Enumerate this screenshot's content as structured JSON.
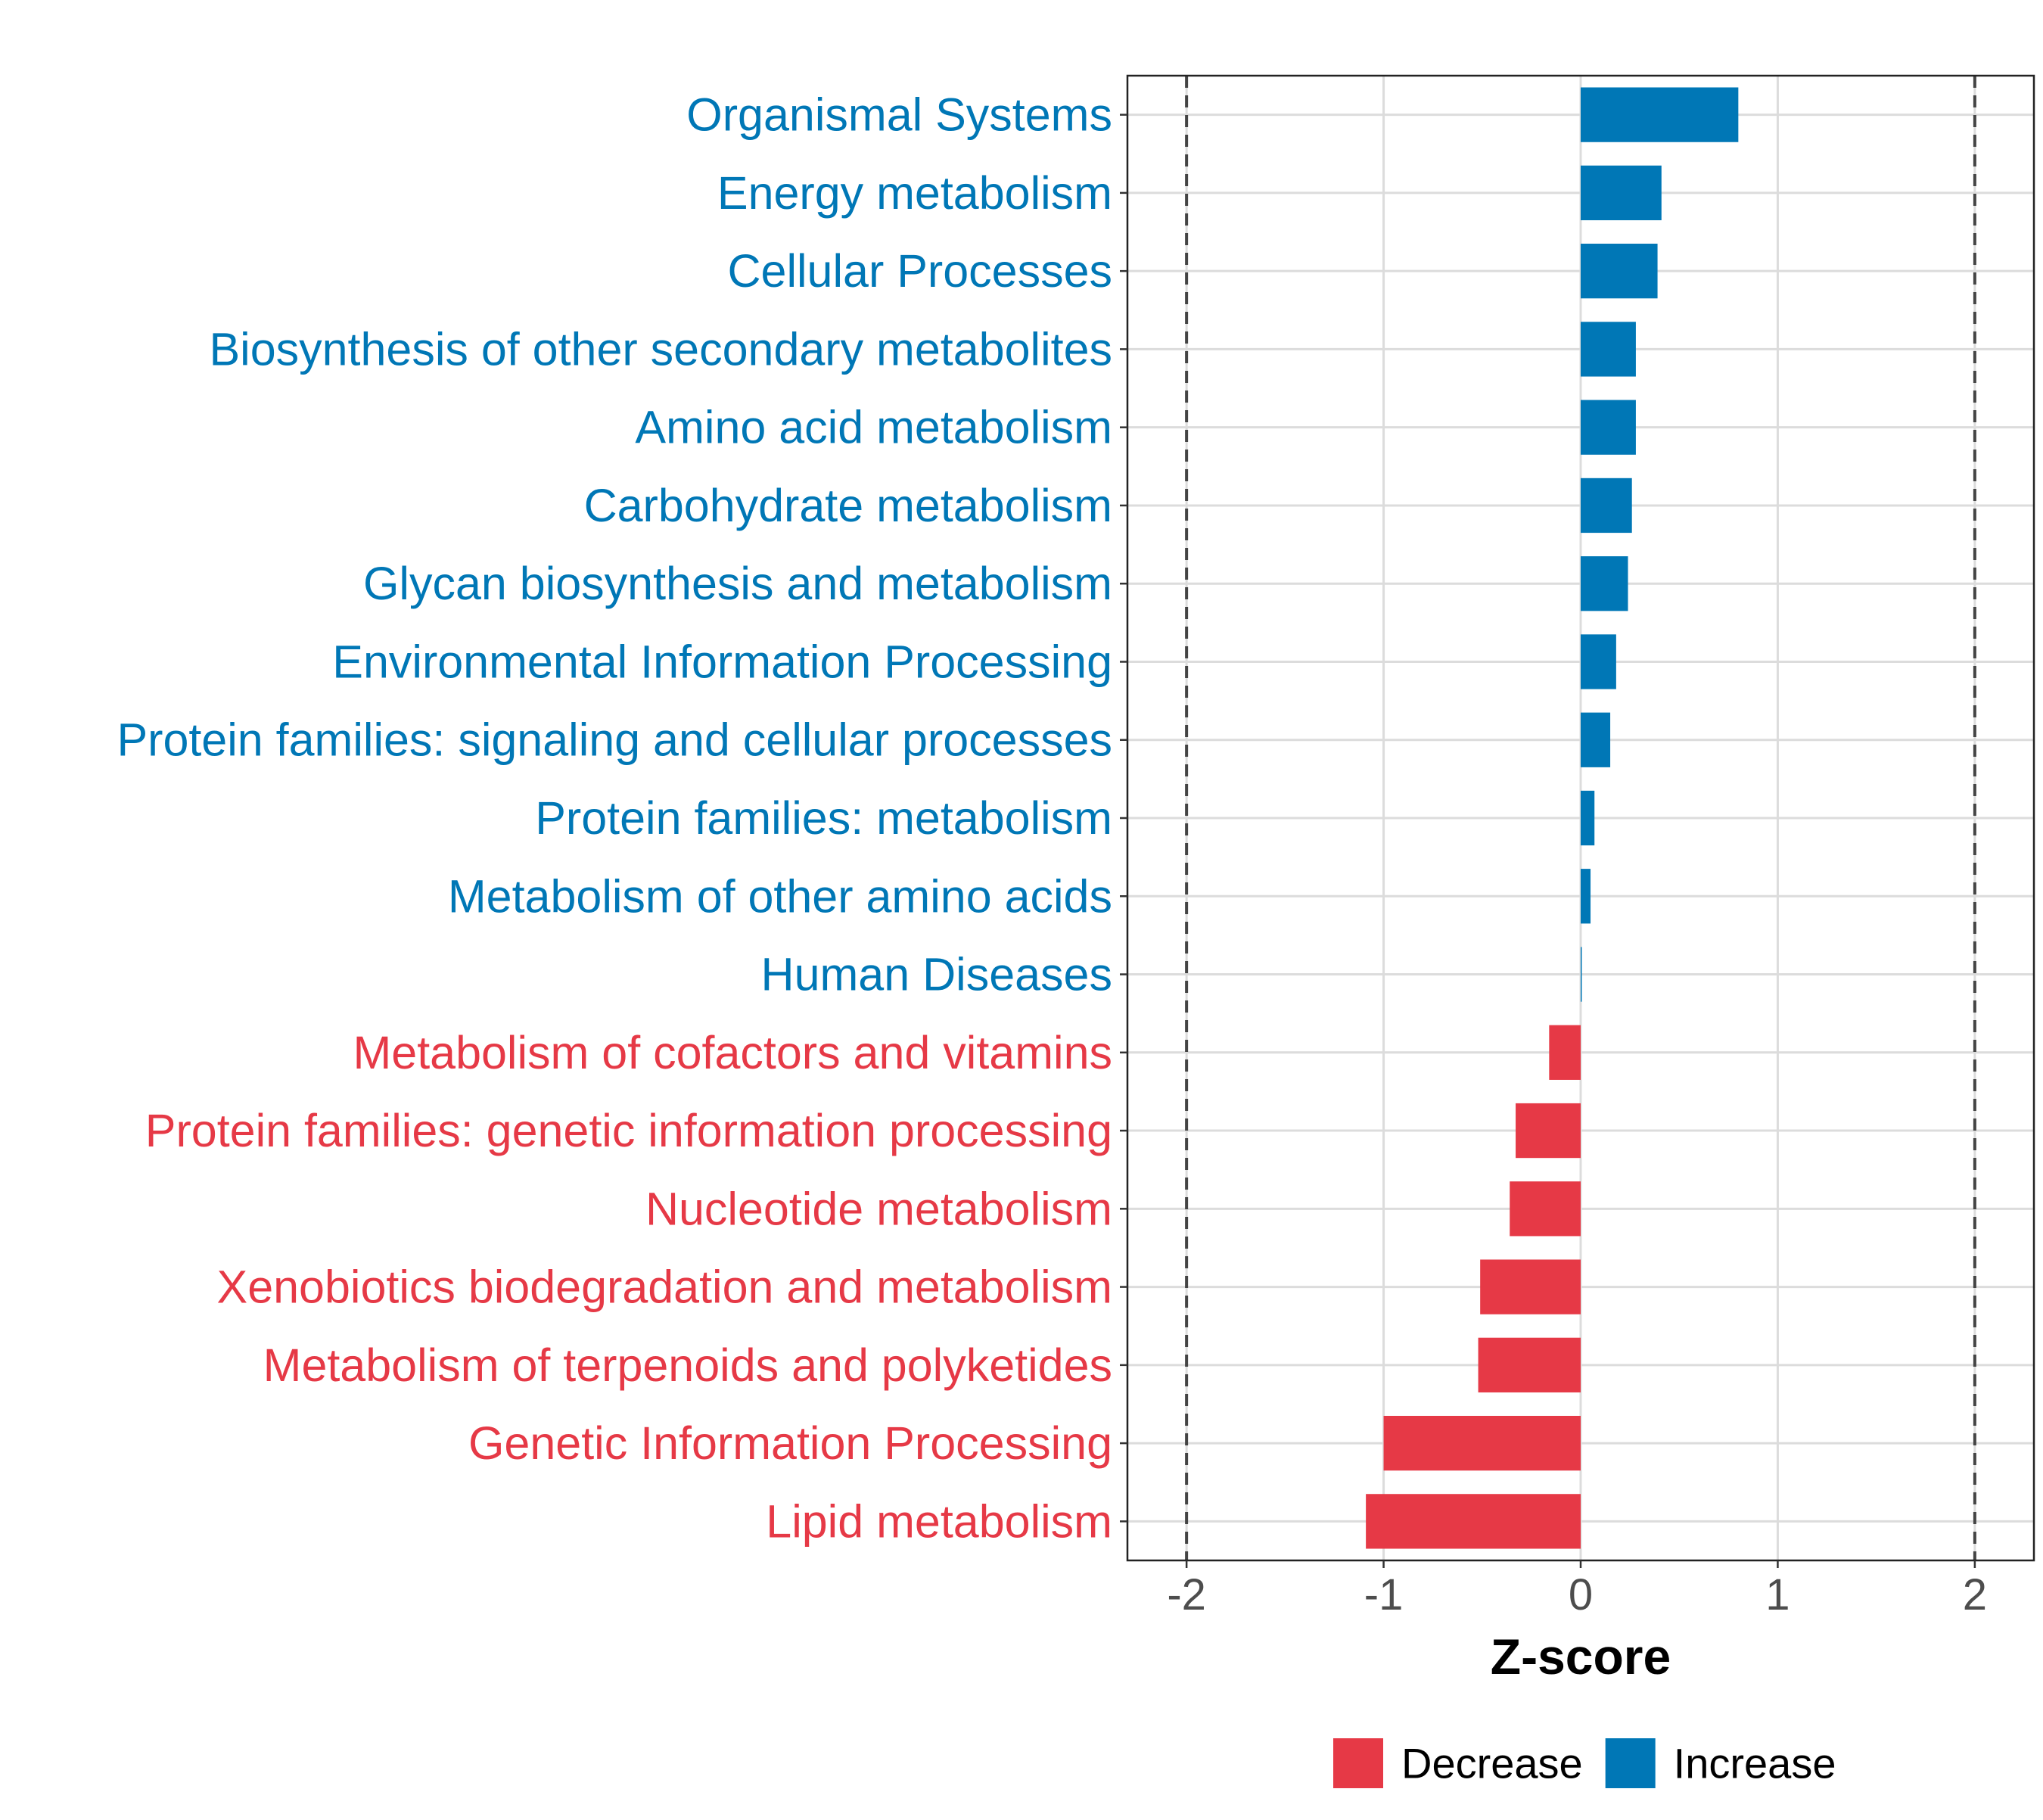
{
  "chart_data": {
    "type": "bar",
    "orientation": "horizontal",
    "title": "",
    "xlabel": "Z-score",
    "ylabel": "",
    "xlim": [
      -2.3,
      2.3
    ],
    "x_ticks": [
      -2,
      -1,
      0,
      1,
      2
    ],
    "x_tick_labels": [
      "-2",
      "-1",
      "0",
      "1",
      "2"
    ],
    "reference_lines": [
      -2,
      2
    ],
    "grid": true,
    "legend_position": "bottom",
    "categories": [
      "Organismal Systems",
      "Energy metabolism",
      "Cellular Processes",
      "Biosynthesis of other secondary metabolites",
      "Amino acid metabolism",
      "Carbohydrate metabolism",
      "Glycan biosynthesis and metabolism",
      "Environmental Information Processing",
      "Protein families: signaling and cellular processes",
      "Protein families: metabolism",
      "Metabolism of other amino acids",
      "Human Diseases",
      "Metabolism of cofactors and vitamins",
      "Protein families: genetic information processing",
      "Nucleotide metabolism",
      "Xenobiotics biodegradation and metabolism",
      "Metabolism of terpenoids and polyketides",
      "Genetic Information Processing",
      "Lipid metabolism"
    ],
    "values": [
      0.8,
      0.41,
      0.39,
      0.28,
      0.28,
      0.26,
      0.24,
      0.18,
      0.15,
      0.07,
      0.05,
      0.005,
      -0.16,
      -0.33,
      -0.36,
      -0.51,
      -0.52,
      -1.0,
      -1.09
    ],
    "groups": [
      "Increase",
      "Increase",
      "Increase",
      "Increase",
      "Increase",
      "Increase",
      "Increase",
      "Increase",
      "Increase",
      "Increase",
      "Increase",
      "Increase",
      "Decrease",
      "Decrease",
      "Decrease",
      "Decrease",
      "Decrease",
      "Decrease",
      "Decrease"
    ],
    "legend": [
      {
        "name": "Decrease",
        "color": "#E63946"
      },
      {
        "name": "Increase",
        "color": "#0077B6"
      }
    ]
  }
}
